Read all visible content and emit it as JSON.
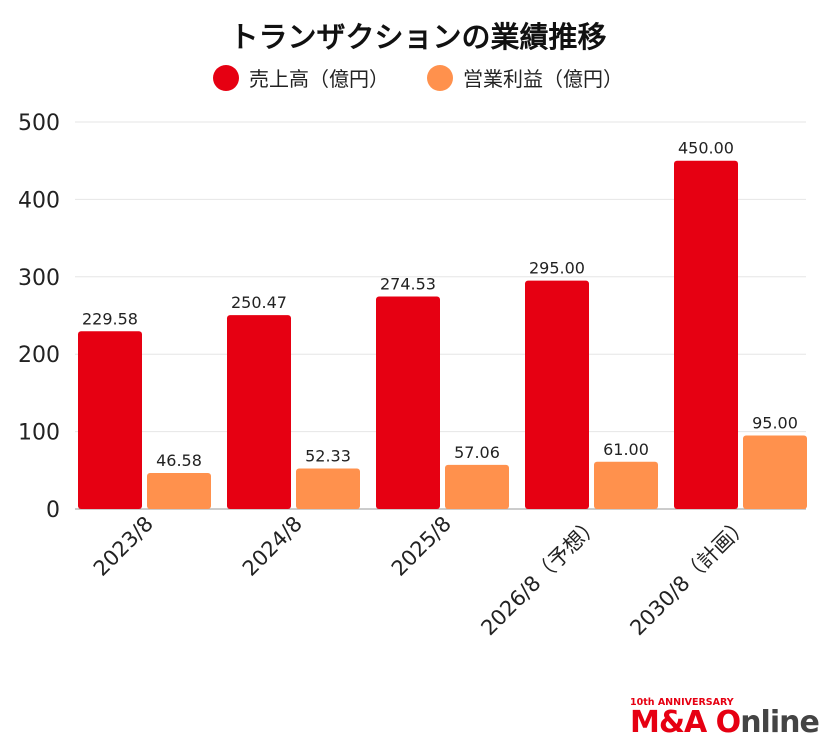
{
  "chart_data": {
    "type": "bar",
    "title": "トランザクションの業績推移",
    "categories": [
      "2023/8",
      "2024/8",
      "2025/8",
      "2026/8（予想）",
      "2030/8（計画）"
    ],
    "series": [
      {
        "name": "売上高（億円）",
        "color": "#e60012",
        "values": [
          229.58,
          250.47,
          274.53,
          295.0,
          450.0
        ],
        "labels": [
          "229.58",
          "250.47",
          "274.53",
          "295.00",
          "450.00"
        ]
      },
      {
        "name": "営業利益（億円）",
        "color": "#ff914d",
        "values": [
          46.58,
          52.33,
          57.06,
          61.0,
          95.0
        ],
        "labels": [
          "46.58",
          "52.33",
          "57.06",
          "61.00",
          "95.00"
        ]
      }
    ],
    "yticks": [
      "0",
      "100",
      "200",
      "300",
      "400",
      "500"
    ],
    "ylim": [
      0,
      500
    ],
    "grid": true,
    "legend": "top"
  },
  "logo": {
    "sub": "10th ANNIVERSARY",
    "brand_red": "M&A O",
    "brand_gray": "nline"
  }
}
